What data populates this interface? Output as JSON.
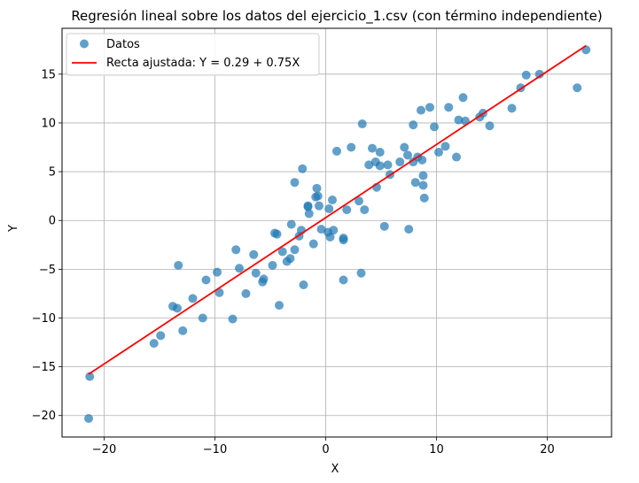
{
  "chart_data": {
    "type": "scatter",
    "title": "Regresión lineal sobre los datos del ejercicio_1.csv (con término independiente)",
    "xlabel": "X",
    "ylabel": "Y",
    "xlim": [
      -23.8,
      25.8
    ],
    "ylim": [
      -22.2,
      19.7
    ],
    "xticks": [
      -20,
      -10,
      0,
      10,
      20
    ],
    "xtick_labels": [
      "−20",
      "−10",
      "0",
      "10",
      "20"
    ],
    "yticks": [
      -20,
      -15,
      -10,
      -5,
      0,
      5,
      10,
      15
    ],
    "ytick_labels": [
      "−20",
      "−15",
      "−10",
      "−5",
      "0",
      "5",
      "10",
      "15"
    ],
    "grid": true,
    "legend_position": "top-left",
    "series": [
      {
        "name": "Datos",
        "kind": "scatter",
        "color": "#1f77b4",
        "points": [
          [
            -21.3,
            -16.0
          ],
          [
            -21.4,
            -20.3
          ],
          [
            -15.5,
            -12.6
          ],
          [
            -14.9,
            -11.8
          ],
          [
            -13.8,
            -8.8
          ],
          [
            -13.4,
            -9.0
          ],
          [
            -13.3,
            -4.6
          ],
          [
            -12.9,
            -11.3
          ],
          [
            -12.0,
            -8.0
          ],
          [
            -11.1,
            -10.0
          ],
          [
            -10.8,
            -6.1
          ],
          [
            -9.8,
            -5.3
          ],
          [
            -9.6,
            -7.4
          ],
          [
            -8.4,
            -10.1
          ],
          [
            -8.1,
            -3.0
          ],
          [
            -7.8,
            -4.9
          ],
          [
            -7.2,
            -7.5
          ],
          [
            -6.5,
            -3.5
          ],
          [
            -6.3,
            -5.4
          ],
          [
            -5.7,
            -6.3
          ],
          [
            -5.6,
            -6.0
          ],
          [
            -4.8,
            -4.6
          ],
          [
            -4.6,
            -1.3
          ],
          [
            -4.4,
            -1.4
          ],
          [
            -4.2,
            -8.7
          ],
          [
            -3.9,
            -3.2
          ],
          [
            -3.5,
            -4.2
          ],
          [
            -3.2,
            -3.9
          ],
          [
            -3.1,
            -0.4
          ],
          [
            -2.8,
            3.9
          ],
          [
            -2.8,
            -3.0
          ],
          [
            -2.4,
            -1.6
          ],
          [
            -2.2,
            -1.0
          ],
          [
            -2.1,
            5.3
          ],
          [
            -2.0,
            -6.6
          ],
          [
            -1.6,
            1.5
          ],
          [
            -1.6,
            1.4
          ],
          [
            -1.5,
            0.7
          ],
          [
            -1.1,
            -2.4
          ],
          [
            -0.9,
            2.4
          ],
          [
            -0.8,
            3.3
          ],
          [
            -0.7,
            2.5
          ],
          [
            -0.6,
            1.5
          ],
          [
            -0.4,
            -0.9
          ],
          [
            0.2,
            -1.2
          ],
          [
            0.3,
            1.2
          ],
          [
            0.4,
            -1.7
          ],
          [
            0.6,
            2.1
          ],
          [
            0.7,
            -1.0
          ],
          [
            1.0,
            7.1
          ],
          [
            1.6,
            -1.8
          ],
          [
            1.6,
            -2.0
          ],
          [
            1.6,
            -6.1
          ],
          [
            1.9,
            1.1
          ],
          [
            2.3,
            7.5
          ],
          [
            3.0,
            2.0
          ],
          [
            3.2,
            -5.4
          ],
          [
            3.3,
            9.9
          ],
          [
            3.5,
            1.1
          ],
          [
            3.9,
            5.7
          ],
          [
            4.2,
            7.4
          ],
          [
            4.5,
            6.0
          ],
          [
            4.6,
            3.4
          ],
          [
            4.9,
            7.0
          ],
          [
            4.9,
            5.6
          ],
          [
            5.3,
            -0.6
          ],
          [
            5.6,
            5.7
          ],
          [
            5.8,
            4.7
          ],
          [
            6.7,
            6.0
          ],
          [
            7.1,
            7.5
          ],
          [
            7.4,
            6.7
          ],
          [
            7.5,
            -0.9
          ],
          [
            7.9,
            6.0
          ],
          [
            7.9,
            9.8
          ],
          [
            8.1,
            3.9
          ],
          [
            8.3,
            6.5
          ],
          [
            8.6,
            11.3
          ],
          [
            8.7,
            6.2
          ],
          [
            8.8,
            4.6
          ],
          [
            8.8,
            3.6
          ],
          [
            8.9,
            2.3
          ],
          [
            9.4,
            11.6
          ],
          [
            9.8,
            9.6
          ],
          [
            10.2,
            7.0
          ],
          [
            10.8,
            7.6
          ],
          [
            11.1,
            11.6
          ],
          [
            11.8,
            6.5
          ],
          [
            12.0,
            10.3
          ],
          [
            12.4,
            12.6
          ],
          [
            12.6,
            10.2
          ],
          [
            13.9,
            10.6
          ],
          [
            14.2,
            11.0
          ],
          [
            14.8,
            9.7
          ],
          [
            16.8,
            11.5
          ],
          [
            17.6,
            13.6
          ],
          [
            18.1,
            14.9
          ],
          [
            19.3,
            15.0
          ],
          [
            22.7,
            13.6
          ],
          [
            23.5,
            17.5
          ]
        ]
      },
      {
        "name": "Recta ajustada: Y = 0.29 + 0.75X",
        "kind": "line",
        "color": "#ff0000",
        "intercept": 0.29,
        "slope": 0.75,
        "x_range": [
          -21.4,
          23.5
        ]
      }
    ]
  }
}
